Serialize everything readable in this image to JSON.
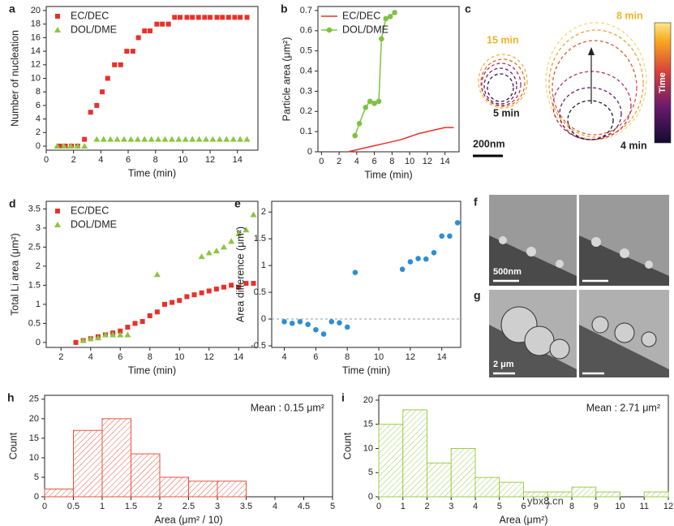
{
  "chart_data": [
    {
      "type": "scatter",
      "panel": "a",
      "xlabel": "Time (min)",
      "ylabel": "Number of nucleation",
      "xlim": [
        0,
        15.5
      ],
      "xticks": [
        0,
        2,
        4,
        6,
        8,
        10,
        12,
        14
      ],
      "ylim": [
        -0.6,
        20.6
      ],
      "yticks": [
        0,
        2,
        4,
        6,
        8,
        10,
        12,
        14,
        16,
        18,
        20
      ],
      "legend": "upper left",
      "series": [
        {
          "name": "EC/DEC",
          "color": "#e8312a",
          "marker": "square",
          "x": [
            1.0,
            1.4,
            1.85,
            2.3,
            2.8,
            3.25,
            3.7,
            4.1,
            4.5,
            5.0,
            5.45,
            5.9,
            6.35,
            6.75,
            7.2,
            7.6,
            8.1,
            8.5,
            8.95,
            9.4,
            9.8,
            10.3,
            10.7,
            11.15,
            11.6,
            12.0,
            12.5,
            12.9,
            13.35,
            13.8,
            14.2,
            14.7
          ],
          "values": [
            0,
            0,
            0,
            0,
            1,
            5,
            6,
            8,
            10,
            12,
            12,
            14,
            14,
            16,
            17,
            17,
            18,
            18,
            18,
            19,
            19,
            19,
            19,
            19,
            19,
            19,
            19,
            19,
            19,
            19,
            19,
            19
          ]
        },
        {
          "name": "DOL/DME",
          "color": "#8cc63f",
          "marker": "triangle",
          "x": [
            0.8,
            1.3,
            1.8,
            2.3,
            2.8,
            3.7,
            4.2,
            4.7,
            5.2,
            5.7,
            6.2,
            6.7,
            7.2,
            7.7,
            8.2,
            8.7,
            9.2,
            9.7,
            10.2,
            10.7,
            11.2,
            11.7,
            12.2,
            12.7,
            13.2,
            13.7,
            14.2,
            14.7
          ],
          "values": [
            0,
            0,
            0,
            0,
            0,
            1,
            1,
            1,
            1,
            1,
            1,
            1,
            1,
            1,
            1,
            1,
            1,
            1,
            1,
            1,
            1,
            1,
            1,
            1,
            1,
            1,
            1,
            1
          ]
        }
      ]
    },
    {
      "type": "line",
      "panel": "b",
      "xlabel": "Time (min)",
      "ylabel": "Particle area (μm²)",
      "xlim": [
        -0.4,
        15.6
      ],
      "xticks": [
        0,
        2,
        4,
        6,
        8,
        10,
        12,
        14
      ],
      "ylim": [
        0,
        0.72
      ],
      "yticks": [
        0,
        0.1,
        0.2,
        0.3,
        0.4,
        0.5,
        0.6,
        0.7
      ],
      "legend": "upper left",
      "series": [
        {
          "name": "EC/DEC",
          "color": "#e8312a",
          "x": [
            3,
            4,
            5,
            6,
            7,
            8,
            9,
            10,
            11,
            12,
            13,
            14,
            15
          ],
          "values": [
            0,
            0.01,
            0.02,
            0.03,
            0.04,
            0.05,
            0.06,
            0.075,
            0.09,
            0.1,
            0.11,
            0.12,
            0.12
          ]
        },
        {
          "name": "DOL/DME",
          "color": "#7dc242",
          "marker": "circle",
          "x": [
            3.8,
            4.3,
            5.0,
            5.5,
            6.0,
            6.5,
            6.8,
            7.3,
            7.8,
            8.3
          ],
          "values": [
            0.08,
            0.14,
            0.22,
            0.25,
            0.24,
            0.25,
            0.56,
            0.66,
            0.67,
            0.69
          ]
        }
      ]
    },
    {
      "type": "scatter",
      "panel": "d",
      "xlabel": "Time (min)",
      "ylabel": "Total Li area (μm²)",
      "xlim": [
        1,
        15.3
      ],
      "xticks": [
        2,
        4,
        6,
        8,
        10,
        12,
        14
      ],
      "ylim": [
        -0.13,
        3.7
      ],
      "yticks": [
        0,
        0.5,
        1,
        1.5,
        2,
        2.5,
        3,
        3.5
      ],
      "legend": "upper left",
      "series": [
        {
          "name": "EC/DEC",
          "color": "#e8312a",
          "marker": "square",
          "x": [
            3,
            3.5,
            4,
            4.5,
            5,
            5.5,
            6,
            6.5,
            7,
            7.5,
            8,
            8.5,
            9,
            9.5,
            10,
            10.5,
            11,
            11.5,
            12,
            12.5,
            13,
            13.5,
            14,
            14.5,
            15
          ],
          "values": [
            0,
            0.05,
            0.1,
            0.15,
            0.2,
            0.25,
            0.3,
            0.4,
            0.5,
            0.55,
            0.7,
            0.8,
            1.0,
            1.05,
            1.1,
            1.2,
            1.25,
            1.3,
            1.35,
            1.4,
            1.45,
            1.5,
            1.45,
            1.55,
            1.55
          ]
        },
        {
          "name": "DOL/DME",
          "color": "#8cc63f",
          "marker": "triangle",
          "x": [
            3.5,
            4,
            4.5,
            5,
            5.5,
            6,
            6.5,
            8.5,
            11.5,
            12,
            12.5,
            13,
            13.5,
            14,
            14.5,
            15
          ],
          "values": [
            0.05,
            0.1,
            0.12,
            0.2,
            0.2,
            0.2,
            0.2,
            1.78,
            2.25,
            2.35,
            2.4,
            2.5,
            2.65,
            2.85,
            2.95,
            3.35
          ]
        }
      ]
    },
    {
      "type": "scatter",
      "panel": "e",
      "xlabel": "Time (min)",
      "ylabel": "Area difference (μm²)",
      "xlim": [
        3.2,
        15.2
      ],
      "xticks": [
        4,
        6,
        8,
        10,
        12,
        14
      ],
      "ylim": [
        -0.53,
        2.2
      ],
      "yticks": [
        -0.5,
        0,
        0.5,
        1,
        1.5,
        2
      ],
      "hline": 0,
      "series": [
        {
          "color": "#2e8ed6",
          "marker": "circle",
          "x": [
            4,
            4.5,
            5,
            5.5,
            6,
            6.5,
            7,
            7.5,
            8,
            8.5,
            11.5,
            12,
            12.5,
            13,
            13.5,
            14,
            14.5,
            15
          ],
          "values": [
            -0.05,
            -0.08,
            -0.05,
            -0.1,
            -0.2,
            -0.28,
            -0.05,
            -0.07,
            -0.15,
            0.87,
            0.93,
            1.07,
            1.13,
            1.12,
            1.24,
            1.55,
            1.55,
            1.8
          ]
        }
      ]
    },
    {
      "type": "histogram",
      "panel": "h",
      "xlabel": "Area (μm² / 10)",
      "ylabel": "Count",
      "color": "#e8533f",
      "annotation": "Mean : 0.15 μm²",
      "xlim": [
        0,
        5
      ],
      "xticks": [
        0,
        0.5,
        1,
        1.5,
        2,
        2.5,
        3,
        3.5,
        4,
        4.5,
        5
      ],
      "ylim": [
        0,
        26
      ],
      "yticks": [
        0,
        5,
        10,
        15,
        20,
        25
      ],
      "bins": [
        0,
        0.5,
        1,
        1.5,
        2,
        2.5,
        3,
        3.5
      ],
      "values": [
        2,
        17,
        20,
        11,
        5,
        4,
        4
      ]
    },
    {
      "type": "histogram",
      "panel": "i",
      "xlabel": "Area (μm²)",
      "ylabel": "Count",
      "color": "#9ccc4a",
      "annotation": "Mean : 2.71 μm²",
      "xlim": [
        0,
        12
      ],
      "xticks": [
        0,
        1,
        2,
        3,
        4,
        5,
        6,
        7,
        8,
        9,
        10,
        11,
        12
      ],
      "ylim": [
        0,
        21
      ],
      "yticks": [
        0,
        5,
        10,
        15,
        20
      ],
      "bins": [
        0,
        1,
        2,
        3,
        4,
        5,
        6,
        7,
        8,
        9,
        10,
        11,
        12
      ],
      "values": [
        15,
        18,
        7,
        10,
        4,
        3,
        1,
        1,
        2,
        1,
        0,
        1
      ]
    }
  ],
  "figure_panels": [
    {
      "panel": "c",
      "labels": [
        "15 min",
        "8 min",
        "5 min",
        "4 min"
      ],
      "scale_bar": "200nm",
      "colorbar": "Time"
    },
    {
      "panel": "f",
      "scale_bar": "500nm"
    },
    {
      "panel": "g",
      "scale_bar": "2 μm"
    }
  ],
  "watermark": "ybx8.cn"
}
